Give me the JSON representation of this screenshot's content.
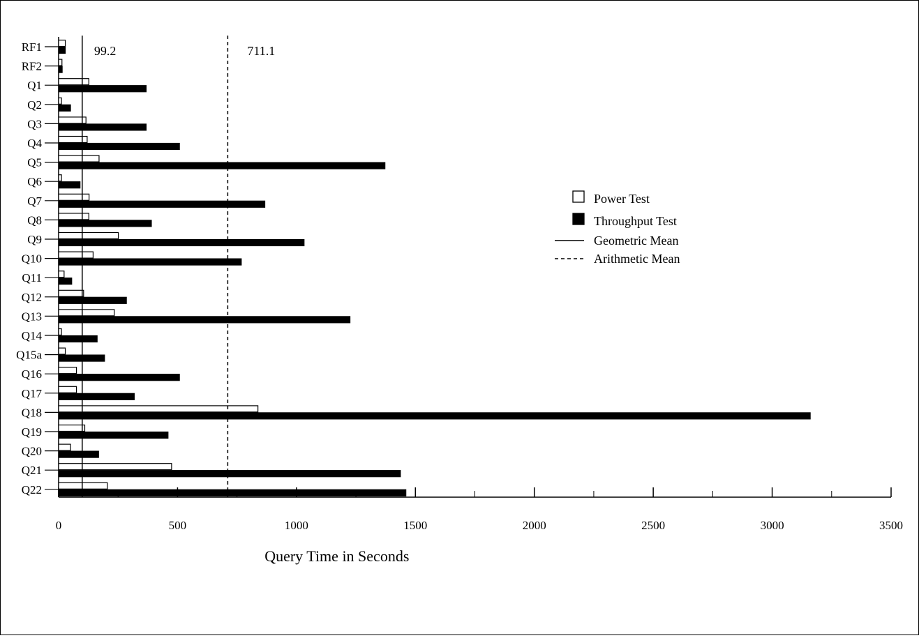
{
  "chart_data": {
    "type": "bar",
    "orientation": "horizontal",
    "categories": [
      "RF1",
      "RF2",
      "Q1",
      "Q2",
      "Q3",
      "Q4",
      "Q5",
      "Q6",
      "Q7",
      "Q8",
      "Q9",
      "Q10",
      "Q11",
      "Q12",
      "Q13",
      "Q14",
      "Q15a",
      "Q16",
      "Q17",
      "Q18",
      "Q19",
      "Q20",
      "Q21",
      "Q22"
    ],
    "series": [
      {
        "name": "Power Test",
        "fill": "#ffffff",
        "values": [
          28,
          14,
          127,
          12,
          115,
          120,
          170,
          12,
          128,
          127,
          251,
          145,
          23,
          105,
          234,
          12,
          28,
          75,
          75,
          838,
          110,
          50,
          475,
          205
        ]
      },
      {
        "name": "Throughput Test",
        "fill": "#000000",
        "values": [
          28,
          15,
          368,
          50,
          368,
          508,
          1372,
          90,
          867,
          390,
          1032,
          768,
          55,
          285,
          1225,
          162,
          193,
          508,
          318,
          3160,
          460,
          168,
          1437,
          1460
        ]
      }
    ],
    "xticks": [
      "0",
      "500",
      "1000",
      "1500",
      "2000",
      "2500",
      "3000",
      "3500"
    ],
    "xlim": [
      0,
      3500
    ],
    "xlabel": "Query Time in Seconds",
    "legend": {
      "placement": "right-middle",
      "entries": [
        {
          "label": "Power Test",
          "style": "open-box"
        },
        {
          "label": "Throughput Test",
          "style": "filled-box"
        },
        {
          "label": "Geometric Mean",
          "style": "solid-line"
        },
        {
          "label": "Arithmetic Mean",
          "style": "dashed-line"
        }
      ]
    },
    "geometric_mean": {
      "value": 99.2,
      "label": "99.2"
    },
    "arithmetic_mean": {
      "value": 711.1,
      "label": "711.1"
    },
    "grid": false
  }
}
